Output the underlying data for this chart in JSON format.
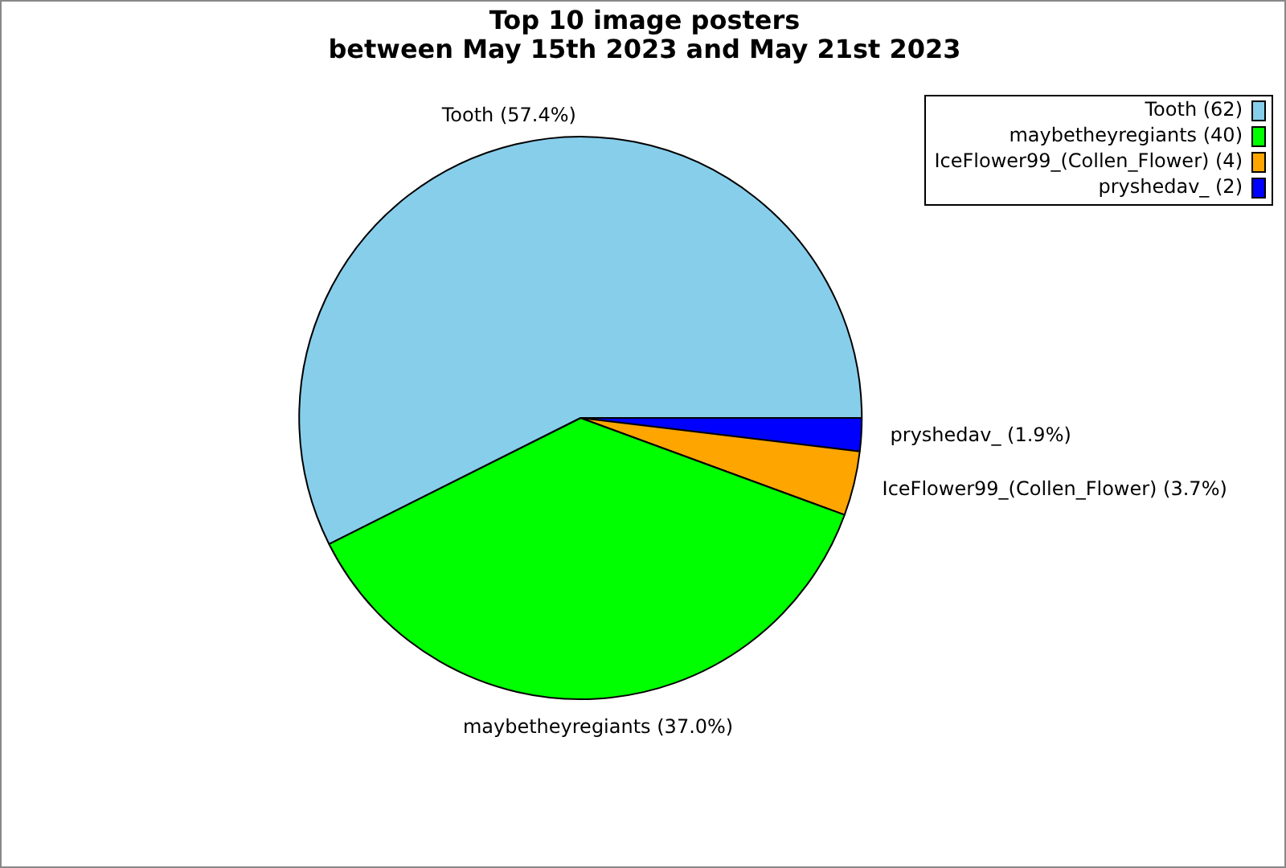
{
  "chart_data": {
    "type": "pie",
    "title": "Top 10 image posters\nbetween May 15th 2023 and May 21st 2023",
    "categories": [
      "Tooth (62)",
      "maybetheyregiants (40)",
      "IceFlower99_(Collen_Flower) (4)",
      "pryshedav_ (2)"
    ],
    "values": [
      57.4,
      37.0,
      3.7,
      1.9
    ],
    "annotations": [
      "Tooth (57.4%)",
      "maybetheyregiants (37.0%)",
      "IceFlower99_(Collen_Flower) (3.7%)",
      "pryshedav_ (1.9%)"
    ],
    "colors": [
      "#87ceeb",
      "#00ff00",
      "#ffa500",
      "#0000ff"
    ],
    "legend": "top right"
  }
}
